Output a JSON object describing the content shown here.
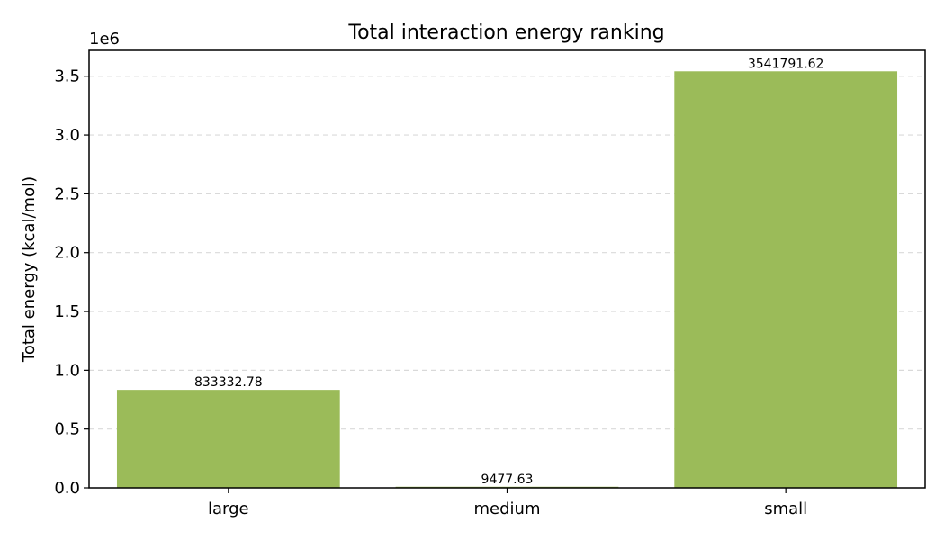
{
  "chart_data": {
    "type": "bar",
    "title": "Total interaction energy ranking",
    "xlabel": "",
    "ylabel": "Total energy (kcal/mol)",
    "y_offset_label": "1e6",
    "categories": [
      "large",
      "medium",
      "small"
    ],
    "values": [
      833332.78,
      9477.63,
      3541791.62
    ],
    "value_labels": [
      "833332.78",
      "9477.63",
      "3541791.62"
    ],
    "ylim": [
      0,
      3720000
    ],
    "yticks": [
      0,
      500000,
      1000000,
      1500000,
      2000000,
      2500000,
      3000000,
      3500000
    ],
    "ytick_labels": [
      "0.0",
      "0.5",
      "1.0",
      "1.5",
      "2.0",
      "2.5",
      "3.0",
      "3.5"
    ],
    "grid": "y-dashed",
    "bar_color": "#9bbb59"
  }
}
